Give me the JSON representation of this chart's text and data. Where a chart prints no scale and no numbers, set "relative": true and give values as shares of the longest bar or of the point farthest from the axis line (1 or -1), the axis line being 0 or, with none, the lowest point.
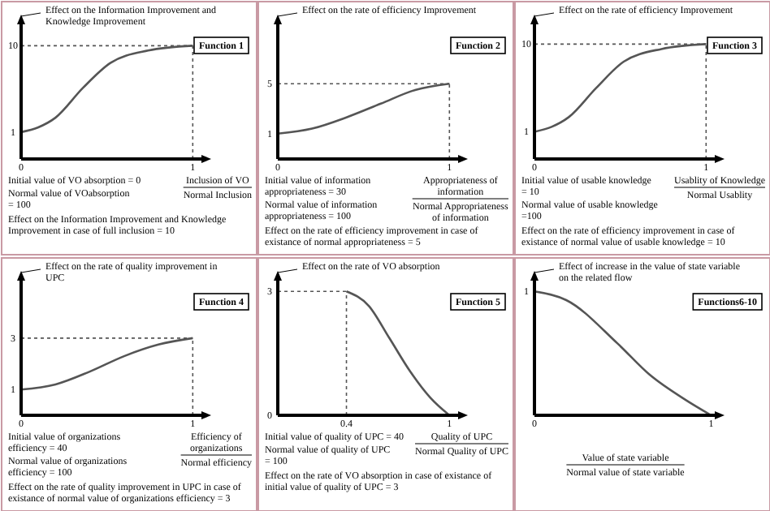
{
  "chart_data": [
    {
      "type": "line",
      "title": "Function 1",
      "ylabel": "Effect on the Information Improvement and Knowledge Improvement",
      "xlabel": "Inclusion of VO\nNormal Inclusion",
      "xlim": [
        0,
        1.06
      ],
      "xticks": [
        0,
        1
      ],
      "ylim": [
        -1.8,
        12.4
      ],
      "yticks": [
        1,
        10
      ],
      "x": [
        0,
        0.1,
        0.2,
        0.36,
        0.52,
        0.74,
        1
      ],
      "series": [
        {
          "color": "#555555",
          "values": [
            1,
            1.5,
            2.5,
            5.6,
            8.2,
            9.5,
            10
          ]
        }
      ],
      "ref_lines": [
        {
          "axis": "x",
          "value": 1
        },
        {
          "axis": "y",
          "value": 10
        }
      ],
      "line_style": "solid",
      "marker": "none",
      "annotations": [
        "Initial value of VO absorption = 0",
        "Normal value of VOabsorption = 100",
        "Effect on the Information Improvement and Knowledge Improvement in case of full inclusion = 10"
      ]
    },
    {
      "type": "line",
      "title": "Function 2",
      "ylabel": "Effect on the rate of efficiency Improvement",
      "xlabel": "Appropriateness of information\nNormal Appropriateness of information",
      "xlim": [
        0,
        1.06
      ],
      "xticks": [
        0,
        1
      ],
      "ylim": [
        -1.04,
        9.9
      ],
      "yticks": [
        1,
        5
      ],
      "x": [
        0,
        0.2,
        0.4,
        0.6,
        0.8,
        1
      ],
      "series": [
        {
          "color": "#555555",
          "values": [
            1,
            1.4,
            2.3,
            3.4,
            4.5,
            5
          ]
        }
      ],
      "ref_lines": [
        {
          "axis": "x",
          "value": 1
        },
        {
          "axis": "y",
          "value": 5
        }
      ],
      "line_style": "solid",
      "marker": "none",
      "annotations": [
        "Initial value of information appropriateness = 30",
        "Normal value of information appropriateness = 100",
        "Effect on the rate of efficiency improvement in case of existance of normal appropriateness = 5"
      ]
    },
    {
      "type": "line",
      "title": "Function 3",
      "ylabel": "Effect on the rate of efficiency Improvement",
      "xlabel": "Usablity of Knowledge\nNormal Usablity",
      "xlim": [
        0,
        1.06
      ],
      "xticks": [
        0,
        1
      ],
      "ylim": [
        -1.8,
        12.2
      ],
      "yticks": [
        1,
        10
      ],
      "x": [
        0,
        0.1,
        0.2,
        0.36,
        0.52,
        0.74,
        1
      ],
      "series": [
        {
          "color": "#555555",
          "values": [
            1,
            1.5,
            2.5,
            5.5,
            8.2,
            9.5,
            10
          ]
        }
      ],
      "ref_lines": [
        {
          "axis": "x",
          "value": 1
        },
        {
          "axis": "y",
          "value": 10
        }
      ],
      "line_style": "solid",
      "marker": "none",
      "annotations": [
        "Initial value of usable knowledge = 10",
        "Normal value of usable knowledge =100",
        "Effect on the rate of efficiency improvement in case of existance of normal value of usable knowledge = 10"
      ]
    },
    {
      "type": "line",
      "title": "Function 4",
      "ylabel": "Effect on the rate of quality improvement in UPC",
      "xlabel": "Efficiency of organizations\nNormal efficiency",
      "xlim": [
        0,
        1.06
      ],
      "xticks": [
        0,
        1
      ],
      "ylim": [
        0,
        5.3
      ],
      "yticks": [
        1,
        3
      ],
      "x": [
        0,
        0.2,
        0.4,
        0.6,
        0.8,
        1
      ],
      "series": [
        {
          "color": "#555555",
          "values": [
            1,
            1.2,
            1.7,
            2.3,
            2.75,
            3
          ]
        }
      ],
      "ref_lines": [
        {
          "axis": "x",
          "value": 1
        },
        {
          "axis": "y",
          "value": 3
        }
      ],
      "line_style": "solid",
      "marker": "none",
      "annotations": [
        "Initial value of organizations efficiency = 40",
        "Normal value of organizations efficiency = 100",
        "Effect on the rate of quality improvement in UPC in case of existance of normal value of organizations efficiency = 3"
      ]
    },
    {
      "type": "line",
      "title": "Function 5",
      "ylabel": "Effect on the rate of VO absorption",
      "xlabel": "Quality of UPC\nNormal Quality of UPC",
      "xlim": [
        0,
        1.06
      ],
      "xticks": [
        0.4,
        1
      ],
      "ylim": [
        0,
        3.3
      ],
      "yticks": [
        0,
        3
      ],
      "x": [
        0.4,
        0.53,
        0.65,
        0.77,
        0.89,
        1
      ],
      "series": [
        {
          "color": "#555555",
          "values": [
            3,
            2.65,
            1.87,
            1.07,
            0.42,
            0
          ]
        }
      ],
      "ref_lines": [
        {
          "axis": "x",
          "value": 0.4
        },
        {
          "axis": "y",
          "value": 3
        }
      ],
      "line_style": "solid",
      "marker": "none",
      "annotations": [
        "Initial value of quality of UPC = 40",
        "Normal value of quality of UPC = 100",
        "Effect on the rate of VO absorption in case of existance of initial value of quality of UPC = 3"
      ]
    },
    {
      "type": "line",
      "title": "Functions6-10",
      "ylabel": "Effect of increase in the value of state variable on the related flow",
      "xlabel": "Value of state variable\nNormal value of state variable",
      "xlim": [
        0,
        1.03
      ],
      "xticks": [
        0,
        1
      ],
      "relative": true,
      "x": [
        0,
        0.18,
        0.47,
        0.65,
        0.86,
        1
      ],
      "series": [
        {
          "color": "#555555",
          "values": [
            1,
            0.93,
            0.58,
            0.33,
            0.12,
            0
          ]
        }
      ],
      "line_style": "solid",
      "marker": "none",
      "annotations": [
        {
          "text": "1",
          "y": 1
        }
      ]
    }
  ]
}
